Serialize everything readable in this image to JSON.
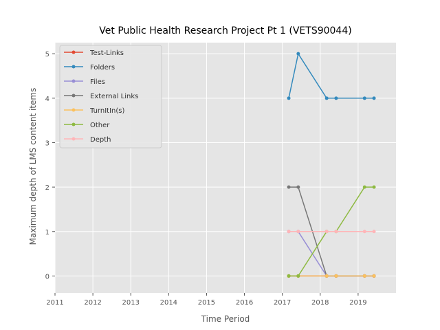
{
  "chart_data": {
    "type": "line",
    "title": "Vet Public Health Research Project Pt 1 (VETS90044)",
    "xlabel": "Time Period",
    "ylabel": "Maximum depth of LMS content items",
    "xlim": [
      2011,
      2020
    ],
    "ylim": [
      -0.38,
      5.25
    ],
    "x_ticks": [
      2011,
      2012,
      2013,
      2014,
      2015,
      2016,
      2017,
      2018,
      2019
    ],
    "y_ticks": [
      0,
      1,
      2,
      3,
      4,
      5
    ],
    "grid": true,
    "legend_position": "top-left",
    "x": [
      2017.17,
      2017.42,
      2018.17,
      2018.42,
      2019.17,
      2019.42
    ],
    "series": [
      {
        "name": "Test-Links",
        "color": "#E24A33",
        "values": [
          0,
          0,
          0,
          0,
          0,
          0
        ]
      },
      {
        "name": "Folders",
        "color": "#348ABD",
        "values": [
          4,
          5,
          4,
          4,
          4,
          4
        ]
      },
      {
        "name": "Files",
        "color": "#988ED5",
        "values": [
          1,
          1,
          0,
          0,
          0,
          0
        ]
      },
      {
        "name": "External Links",
        "color": "#777777",
        "values": [
          2,
          2,
          0,
          0,
          0,
          0
        ]
      },
      {
        "name": "TurnItIn(s)",
        "color": "#FBC15E",
        "values": [
          0,
          0,
          0,
          0,
          0,
          0
        ]
      },
      {
        "name": "Other",
        "color": "#8EBA42",
        "values": [
          0,
          0,
          1,
          1,
          2,
          2
        ]
      },
      {
        "name": "Depth",
        "color": "#FFB5B8",
        "values": [
          1,
          1,
          1,
          1,
          1,
          1
        ]
      }
    ]
  }
}
